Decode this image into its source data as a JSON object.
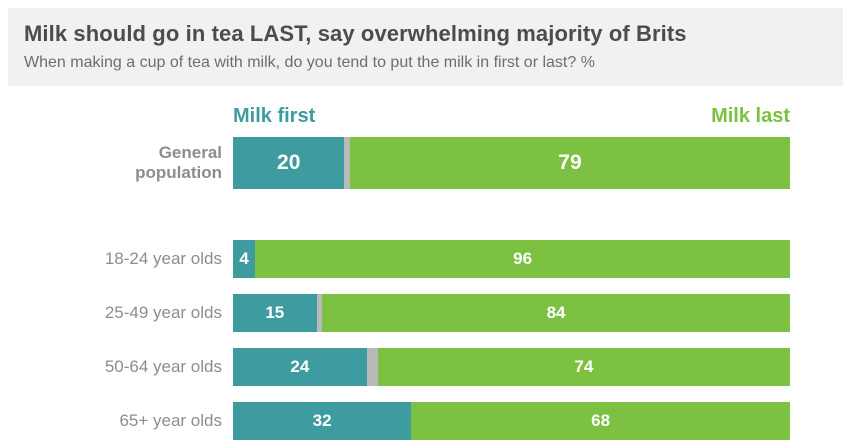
{
  "header": {
    "title": "Milk should go in tea LAST, say overwhelming majority of Brits",
    "subtitle": "When making a cup of tea with milk, do you tend to put the milk in first or last? %"
  },
  "legend": {
    "first": "Milk first",
    "last": "Milk last"
  },
  "colors": {
    "milk_first": "#3e9ca1",
    "milk_last": "#7dc142",
    "unlabeled_gap": "#b9b9b9",
    "header_background": "#f1f1f2",
    "title_text": "#4c4c4c",
    "label_text": "#8d8d8d"
  },
  "chart_data": {
    "type": "bar",
    "orientation": "horizontal_stacked",
    "title": "Milk should go in tea LAST, say overwhelming majority of Brits",
    "subtitle": "When making a cup of tea with milk, do you tend to put the milk in first or last? %",
    "categories": [
      "General population",
      "18-24 year olds",
      "25-49 year olds",
      "50-64 year olds",
      "65+ year olds"
    ],
    "series": [
      {
        "name": "Milk first",
        "color": "#3e9ca1",
        "values": [
          20,
          4,
          15,
          24,
          32
        ]
      },
      {
        "name": "Milk last",
        "color": "#7dc142",
        "values": [
          79,
          96,
          84,
          74,
          68
        ]
      }
    ],
    "unlabeled_gray_remainder": [
      1,
      0,
      1,
      2,
      0
    ],
    "xlim": [
      0,
      100
    ],
    "value_labels": "inside segments, white bold",
    "legend_position": "above first bar; 'Milk first' left-aligned, 'Milk last' right-aligned",
    "grid": false
  }
}
